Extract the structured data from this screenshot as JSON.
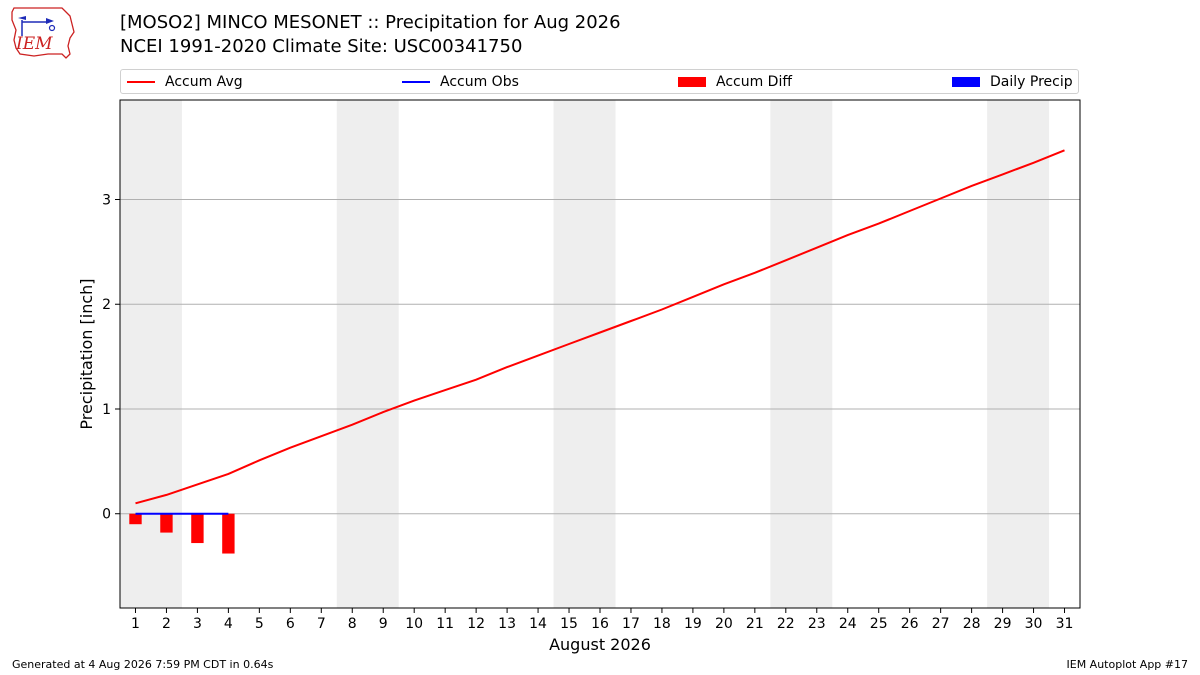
{
  "header": {
    "title_line1": "[MOSO2] MINCO MESONET :: Precipitation for Aug 2026",
    "title_line2": "NCEI 1991-2020 Climate Site: USC00341750",
    "logo_text": "IEM"
  },
  "footer": {
    "generated": "Generated at 4 Aug 2026 7:59 PM CDT in 0.64s",
    "app": "IEM Autoplot App #17"
  },
  "colors": {
    "accum_avg": "#ff0000",
    "accum_obs": "#0000ff",
    "accum_diff": "#ff0000",
    "daily_precip": "#0000ff",
    "weekend_band": "#eeeeee",
    "grid": "#b0b0b0",
    "logo_red": "#cc2222",
    "logo_blue": "#1e2bb8"
  },
  "chart_data": {
    "type": "line",
    "xlabel": "August 2026",
    "ylabel": "Precipitation [inch]",
    "x": [
      1,
      2,
      3,
      4,
      5,
      6,
      7,
      8,
      9,
      10,
      11,
      12,
      13,
      14,
      15,
      16,
      17,
      18,
      19,
      20,
      21,
      22,
      23,
      24,
      25,
      26,
      27,
      28,
      29,
      30,
      31
    ],
    "xlim": [
      0.5,
      31.5
    ],
    "ylim": [
      -0.9,
      3.95
    ],
    "yticks": [
      0,
      1,
      2,
      3
    ],
    "grid": "horizontal",
    "legend_position": "top",
    "weekend_bands": [
      [
        0.5,
        2.5
      ],
      [
        7.5,
        9.5
      ],
      [
        14.5,
        16.5
      ],
      [
        21.5,
        23.5
      ],
      [
        28.5,
        30.5
      ]
    ],
    "series": [
      {
        "name": "Accum Avg",
        "kind": "line",
        "x": [
          1,
          2,
          3,
          4,
          5,
          6,
          7,
          8,
          9,
          10,
          11,
          12,
          13,
          14,
          15,
          16,
          17,
          18,
          19,
          20,
          21,
          22,
          23,
          24,
          25,
          26,
          27,
          28,
          29,
          30,
          31
        ],
        "values": [
          0.1,
          0.18,
          0.28,
          0.38,
          0.51,
          0.63,
          0.74,
          0.85,
          0.97,
          1.08,
          1.18,
          1.28,
          1.4,
          1.51,
          1.62,
          1.73,
          1.84,
          1.95,
          2.07,
          2.19,
          2.3,
          2.42,
          2.54,
          2.66,
          2.77,
          2.89,
          3.01,
          3.13,
          3.24,
          3.35,
          3.47
        ]
      },
      {
        "name": "Accum Obs",
        "kind": "line",
        "x": [
          1,
          2,
          3,
          4
        ],
        "values": [
          0.0,
          0.0,
          0.0,
          0.0
        ]
      },
      {
        "name": "Accum Diff",
        "kind": "bar",
        "x": [
          1,
          2,
          3,
          4
        ],
        "values": [
          -0.1,
          -0.18,
          -0.28,
          -0.38
        ]
      },
      {
        "name": "Daily Precip",
        "kind": "bar",
        "x": [
          1,
          2,
          3,
          4
        ],
        "values": [
          0.0,
          0.0,
          0.0,
          0.0
        ]
      }
    ]
  }
}
